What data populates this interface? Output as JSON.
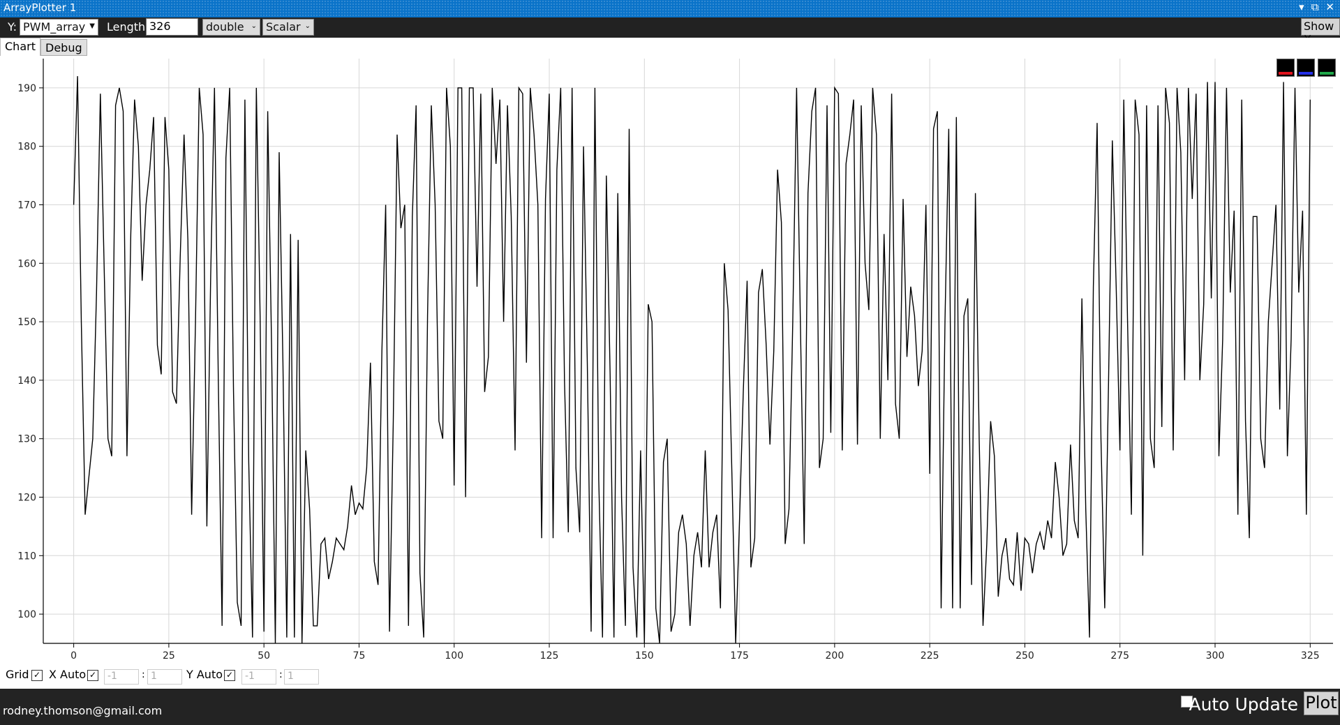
{
  "window": {
    "title": "ArrayPlotter 1",
    "buttons": [
      "▾",
      "⧉",
      "✕"
    ]
  },
  "toolbar": {
    "y_label": "Y:",
    "y_value": "PWM_array",
    "length_label": "Length:",
    "length_value": "326",
    "type_value": "double",
    "mode_value": "Scalar",
    "show_x_label": "Show X"
  },
  "tabs": [
    {
      "label": "Chart"
    },
    {
      "label": "Debug"
    }
  ],
  "legend_colors": [
    "#e0141e",
    "#2430e8",
    "#1fa84a"
  ],
  "bottom": {
    "grid_label": "Grid",
    "x_auto_label": "X Auto",
    "x_min": "-1",
    "x_max": "1",
    "range_sep": ":",
    "y_auto_label": "Y Auto",
    "y_min": "-1",
    "y_max": "1"
  },
  "status": {
    "email": "rodney.thomson@gmail.com",
    "auto_update_label": "Auto Update",
    "plot_label": "Plot"
  },
  "chart_data": {
    "type": "line",
    "xlim": [
      -8,
      331
    ],
    "ylim": [
      95,
      195
    ],
    "xticks": [
      0,
      25,
      50,
      75,
      100,
      125,
      150,
      175,
      200,
      225,
      250,
      275,
      300,
      325
    ],
    "yticks": [
      100,
      110,
      120,
      130,
      140,
      150,
      160,
      170,
      180,
      190
    ],
    "grid": true,
    "line_color": "#000000",
    "anchors": [
      [
        0,
        170
      ],
      [
        1,
        192
      ],
      [
        2,
        150
      ],
      [
        3,
        117
      ],
      [
        5,
        130
      ],
      [
        6,
        155
      ],
      [
        7,
        189
      ],
      [
        9,
        130
      ],
      [
        10,
        127
      ],
      [
        11,
        187
      ],
      [
        12,
        190
      ],
      [
        13,
        186
      ],
      [
        14,
        127
      ],
      [
        15,
        165
      ],
      [
        16,
        188
      ],
      [
        17,
        180
      ],
      [
        18,
        157
      ],
      [
        19,
        170
      ],
      [
        20,
        176
      ],
      [
        21,
        185
      ],
      [
        22,
        146
      ],
      [
        23,
        141
      ],
      [
        24,
        185
      ],
      [
        25,
        176
      ],
      [
        26,
        138
      ],
      [
        27,
        136
      ],
      [
        28,
        161
      ],
      [
        29,
        182
      ],
      [
        30,
        164
      ],
      [
        31,
        117
      ],
      [
        32,
        150
      ],
      [
        33,
        190
      ],
      [
        34,
        182
      ],
      [
        35,
        115
      ],
      [
        36,
        158
      ],
      [
        37,
        190
      ],
      [
        38,
        140
      ],
      [
        39,
        98
      ],
      [
        40,
        178
      ],
      [
        41,
        190
      ],
      [
        42,
        138
      ],
      [
        43,
        102
      ],
      [
        44,
        98
      ],
      [
        45,
        188
      ],
      [
        46,
        126
      ],
      [
        47,
        96
      ],
      [
        48,
        190
      ],
      [
        49,
        151
      ],
      [
        50,
        97
      ],
      [
        51,
        186
      ],
      [
        52,
        146
      ],
      [
        53,
        95
      ],
      [
        54,
        179
      ],
      [
        55,
        143
      ],
      [
        56,
        96
      ],
      [
        57,
        165
      ],
      [
        58,
        96
      ],
      [
        59,
        164
      ],
      [
        60,
        95
      ],
      [
        61,
        128
      ],
      [
        62,
        118
      ],
      [
        63,
        98
      ],
      [
        64,
        98
      ],
      [
        65,
        112
      ],
      [
        66,
        113
      ],
      [
        67,
        106
      ],
      [
        68,
        109
      ],
      [
        69,
        113
      ],
      [
        70,
        112
      ],
      [
        71,
        111
      ],
      [
        72,
        115
      ],
      [
        73,
        122
      ],
      [
        74,
        117
      ],
      [
        75,
        119
      ],
      [
        76,
        118
      ],
      [
        77,
        125
      ],
      [
        78,
        143
      ],
      [
        79,
        109
      ],
      [
        80,
        105
      ],
      [
        81,
        145
      ],
      [
        82,
        170
      ],
      [
        83,
        97
      ],
      [
        84,
        133
      ],
      [
        85,
        182
      ],
      [
        86,
        166
      ],
      [
        87,
        170
      ],
      [
        88,
        98
      ],
      [
        89,
        168
      ],
      [
        90,
        187
      ],
      [
        91,
        107
      ],
      [
        92,
        96
      ],
      [
        93,
        151
      ],
      [
        94,
        187
      ],
      [
        95,
        170
      ],
      [
        96,
        133
      ],
      [
        97,
        130
      ],
      [
        98,
        190
      ],
      [
        99,
        180
      ],
      [
        100,
        122
      ],
      [
        101,
        190
      ],
      [
        102,
        190
      ],
      [
        103,
        120
      ],
      [
        104,
        190
      ],
      [
        105,
        190
      ],
      [
        106,
        156
      ],
      [
        107,
        189
      ],
      [
        108,
        138
      ],
      [
        109,
        144
      ],
      [
        110,
        190
      ],
      [
        111,
        177
      ],
      [
        112,
        188
      ],
      [
        113,
        150
      ],
      [
        114,
        187
      ],
      [
        115,
        168
      ],
      [
        116,
        128
      ],
      [
        117,
        190
      ],
      [
        118,
        189
      ],
      [
        119,
        143
      ],
      [
        120,
        190
      ],
      [
        121,
        182
      ],
      [
        122,
        170
      ],
      [
        123,
        113
      ],
      [
        124,
        171
      ],
      [
        125,
        189
      ],
      [
        126,
        113
      ],
      [
        127,
        176
      ],
      [
        128,
        190
      ],
      [
        129,
        140
      ],
      [
        130,
        114
      ],
      [
        131,
        190
      ],
      [
        132,
        125
      ],
      [
        133,
        114
      ],
      [
        134,
        180
      ],
      [
        135,
        143
      ],
      [
        136,
        97
      ],
      [
        137,
        190
      ],
      [
        138,
        123
      ],
      [
        139,
        96
      ],
      [
        140,
        175
      ],
      [
        141,
        141
      ],
      [
        142,
        96
      ],
      [
        143,
        172
      ],
      [
        144,
        120
      ],
      [
        145,
        98
      ],
      [
        146,
        183
      ],
      [
        147,
        108
      ],
      [
        148,
        96
      ],
      [
        149,
        128
      ],
      [
        150,
        95
      ],
      [
        151,
        153
      ],
      [
        152,
        150
      ],
      [
        153,
        101
      ],
      [
        154,
        95
      ],
      [
        155,
        126
      ],
      [
        156,
        130
      ],
      [
        157,
        97
      ],
      [
        158,
        100
      ],
      [
        159,
        114
      ],
      [
        160,
        117
      ],
      [
        161,
        112
      ],
      [
        162,
        98
      ],
      [
        163,
        110
      ],
      [
        164,
        114
      ],
      [
        165,
        108
      ],
      [
        166,
        128
      ],
      [
        167,
        108
      ],
      [
        168,
        114
      ],
      [
        169,
        117
      ],
      [
        170,
        101
      ],
      [
        171,
        160
      ],
      [
        172,
        152
      ],
      [
        173,
        124
      ],
      [
        174,
        95
      ],
      [
        175,
        116
      ],
      [
        176,
        138
      ],
      [
        177,
        157
      ],
      [
        178,
        108
      ],
      [
        179,
        113
      ],
      [
        180,
        155
      ],
      [
        181,
        159
      ],
      [
        182,
        146
      ],
      [
        183,
        129
      ],
      [
        184,
        145
      ],
      [
        185,
        176
      ],
      [
        186,
        167
      ],
      [
        187,
        112
      ],
      [
        188,
        118
      ],
      [
        189,
        150
      ],
      [
        190,
        190
      ],
      [
        191,
        150
      ],
      [
        192,
        112
      ],
      [
        193,
        172
      ],
      [
        194,
        186
      ],
      [
        195,
        190
      ],
      [
        196,
        125
      ],
      [
        197,
        130
      ],
      [
        198,
        187
      ],
      [
        199,
        131
      ],
      [
        200,
        190
      ],
      [
        201,
        189
      ],
      [
        202,
        128
      ],
      [
        203,
        177
      ],
      [
        204,
        182
      ],
      [
        205,
        188
      ],
      [
        206,
        129
      ],
      [
        207,
        187
      ],
      [
        208,
        160
      ],
      [
        209,
        152
      ],
      [
        210,
        190
      ],
      [
        211,
        182
      ],
      [
        212,
        130
      ],
      [
        213,
        165
      ],
      [
        214,
        140
      ],
      [
        215,
        189
      ],
      [
        216,
        136
      ],
      [
        217,
        130
      ],
      [
        218,
        171
      ],
      [
        219,
        144
      ],
      [
        220,
        156
      ],
      [
        221,
        151
      ],
      [
        222,
        139
      ],
      [
        223,
        145
      ],
      [
        224,
        170
      ],
      [
        225,
        124
      ],
      [
        226,
        183
      ],
      [
        227,
        186
      ],
      [
        228,
        101
      ],
      [
        229,
        150
      ],
      [
        230,
        183
      ],
      [
        231,
        101
      ],
      [
        232,
        185
      ],
      [
        233,
        101
      ],
      [
        234,
        151
      ],
      [
        235,
        154
      ],
      [
        236,
        105
      ],
      [
        237,
        172
      ],
      [
        238,
        130
      ],
      [
        239,
        98
      ],
      [
        240,
        112
      ],
      [
        241,
        133
      ],
      [
        242,
        127
      ],
      [
        243,
        103
      ],
      [
        244,
        110
      ],
      [
        245,
        113
      ],
      [
        246,
        106
      ],
      [
        247,
        105
      ],
      [
        248,
        114
      ],
      [
        249,
        104
      ],
      [
        250,
        113
      ],
      [
        251,
        112
      ],
      [
        252,
        107
      ],
      [
        253,
        112
      ],
      [
        254,
        114
      ],
      [
        255,
        111
      ],
      [
        256,
        116
      ],
      [
        257,
        113
      ],
      [
        258,
        126
      ],
      [
        259,
        120
      ],
      [
        260,
        110
      ],
      [
        261,
        112
      ],
      [
        262,
        129
      ],
      [
        263,
        116
      ],
      [
        264,
        113
      ],
      [
        265,
        154
      ],
      [
        266,
        118
      ],
      [
        267,
        96
      ],
      [
        268,
        156
      ],
      [
        269,
        184
      ],
      [
        270,
        130
      ],
      [
        271,
        101
      ],
      [
        272,
        140
      ],
      [
        273,
        181
      ],
      [
        274,
        156
      ],
      [
        275,
        128
      ],
      [
        276,
        188
      ],
      [
        277,
        150
      ],
      [
        278,
        117
      ],
      [
        279,
        188
      ],
      [
        280,
        182
      ],
      [
        281,
        110
      ],
      [
        282,
        187
      ],
      [
        283,
        130
      ],
      [
        284,
        125
      ],
      [
        285,
        187
      ],
      [
        286,
        132
      ],
      [
        287,
        190
      ],
      [
        288,
        184
      ],
      [
        289,
        128
      ],
      [
        290,
        190
      ],
      [
        291,
        179
      ],
      [
        292,
        140
      ],
      [
        293,
        190
      ],
      [
        294,
        171
      ],
      [
        295,
        189
      ],
      [
        296,
        140
      ],
      [
        297,
        153
      ],
      [
        298,
        191
      ],
      [
        299,
        154
      ],
      [
        300,
        191
      ],
      [
        301,
        127
      ],
      [
        302,
        147
      ],
      [
        303,
        190
      ],
      [
        304,
        155
      ],
      [
        305,
        169
      ],
      [
        306,
        117
      ],
      [
        307,
        188
      ],
      [
        308,
        133
      ],
      [
        309,
        113
      ],
      [
        310,
        168
      ],
      [
        311,
        168
      ],
      [
        312,
        130
      ],
      [
        313,
        125
      ],
      [
        314,
        150
      ],
      [
        315,
        160
      ],
      [
        316,
        170
      ],
      [
        317,
        135
      ]
    ]
  }
}
